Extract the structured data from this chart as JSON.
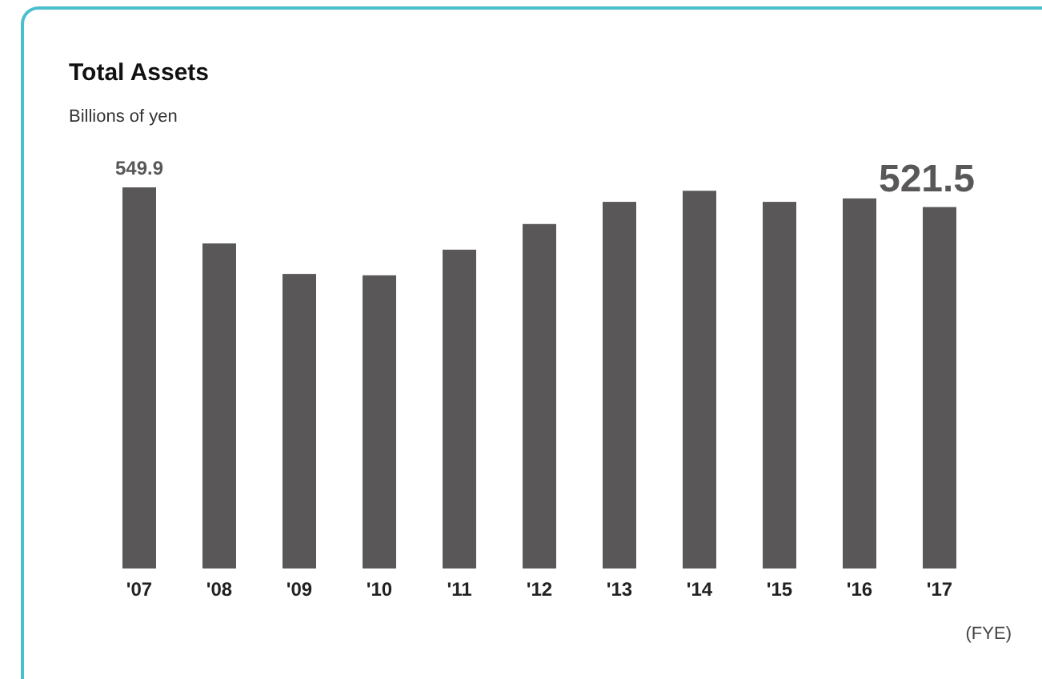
{
  "chart_data": {
    "type": "bar",
    "title": "Total Assets",
    "subtitle": "Billions of yen",
    "categories": [
      "'07",
      "'08",
      "'09",
      "'10",
      "'11",
      "'12",
      "'13",
      "'14",
      "'15",
      "'16",
      "'17"
    ],
    "values": [
      549.9,
      469,
      425,
      423,
      460,
      497,
      529,
      545,
      529,
      534,
      521.5
    ],
    "value_labels": [
      "549.9",
      null,
      null,
      null,
      null,
      null,
      null,
      null,
      null,
      null,
      "521.5"
    ],
    "color": "#595757",
    "annotations": [
      "(FYE)"
    ]
  }
}
